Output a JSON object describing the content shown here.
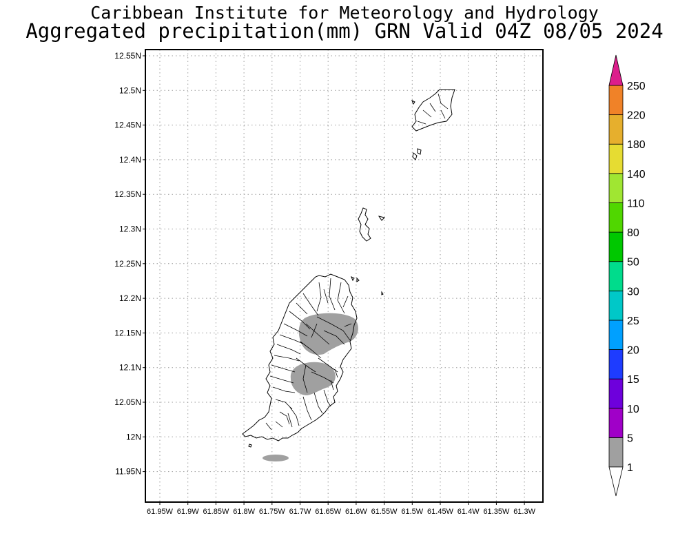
{
  "header": {
    "institution": "Caribbean Institute for Meteorology and Hydrology",
    "product": "Aggregated precipitation(mm) GRN Valid 04Z 08/05 2024"
  },
  "map": {
    "lat_range": [
      11.91,
      12.57
    ],
    "lon_range": [
      -61.975,
      -61.275
    ],
    "lat_ticks": [
      "12.55N",
      "12.5N",
      "12.45N",
      "12.4N",
      "12.35N",
      "12.3N",
      "12.25N",
      "12.2N",
      "12.15N",
      "12.1N",
      "12.05N",
      "12N",
      "11.95N"
    ],
    "lon_ticks": [
      "61.95W",
      "61.9W",
      "61.85W",
      "61.8W",
      "61.75W",
      "61.7W",
      "61.65W",
      "61.6W",
      "61.55W",
      "61.5W",
      "61.45W",
      "61.4W",
      "61.35W",
      "61.3W"
    ],
    "grid": "dotted"
  },
  "legend": {
    "labels": [
      "1",
      "5",
      "10",
      "15",
      "20",
      "25",
      "30",
      "50",
      "80",
      "110",
      "140",
      "180",
      "220",
      "250"
    ],
    "colors": [
      "#a0a0a0",
      "#a000c8",
      "#6e00dc",
      "#1e3cff",
      "#00a0ff",
      "#00c8c8",
      "#00dc8c",
      "#00c800",
      "#50d700",
      "#a0e632",
      "#e6dc32",
      "#e6af2d",
      "#f08228",
      "#fa3c3c",
      "#dc1e8c"
    ]
  },
  "precip_areas": [
    {
      "name": "north-central",
      "value_mm": "1-5"
    },
    {
      "name": "south-central",
      "value_mm": "1-5"
    },
    {
      "name": "offshore-south",
      "value_mm": "1-5"
    }
  ]
}
